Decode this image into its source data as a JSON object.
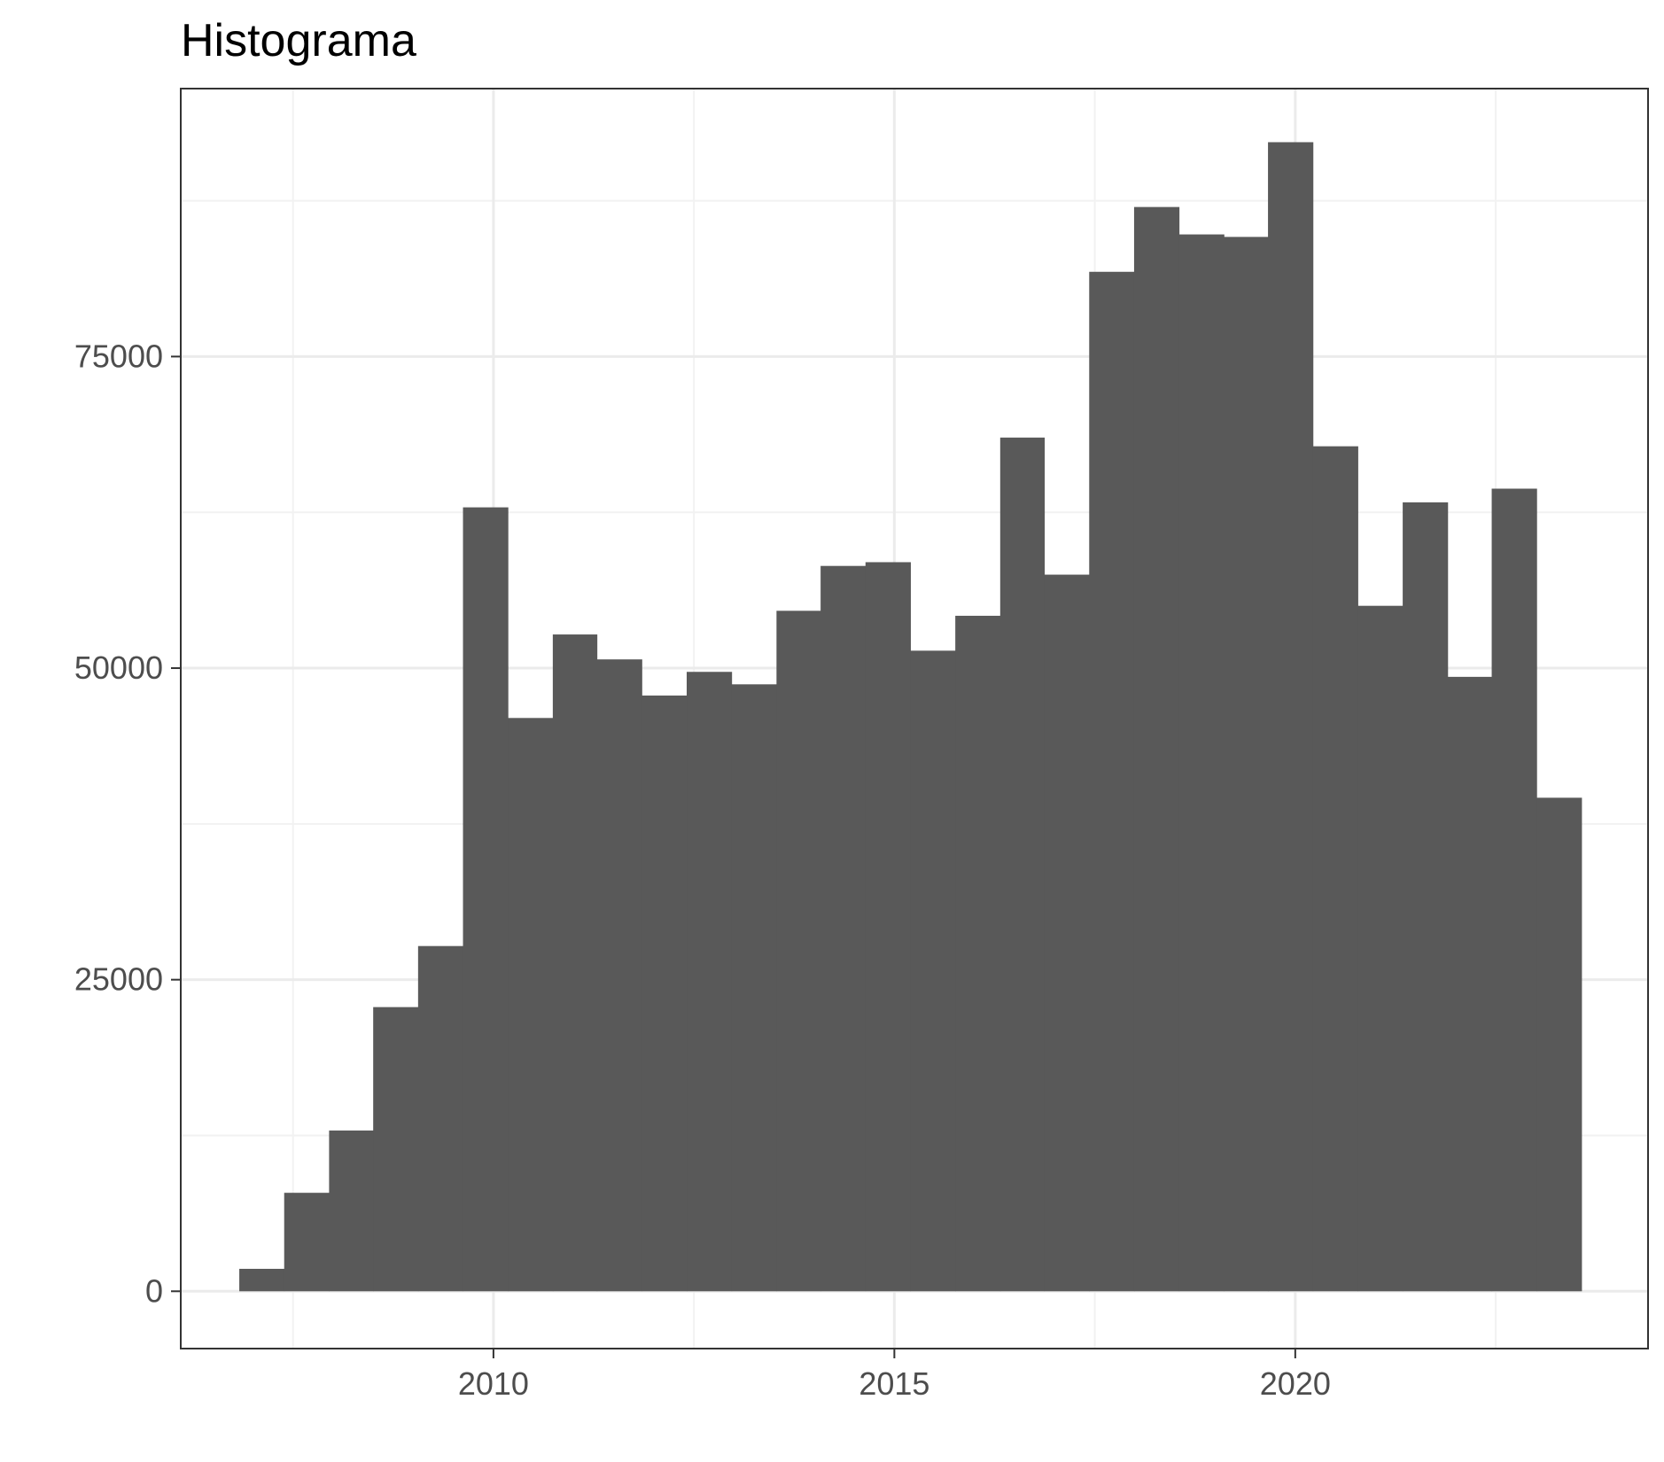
{
  "chart_data": {
    "type": "bar",
    "title": "Histograma",
    "xlabel": "",
    "ylabel": "",
    "xlim": [
      2006.1,
      2024.4
    ],
    "ylim": [
      -4600,
      96500
    ],
    "x_ticks": [
      2010,
      2015,
      2020
    ],
    "y_ticks": [
      0,
      25000,
      50000,
      75000
    ],
    "grid": true,
    "bins": [
      {
        "x0": 2006.83,
        "x1": 2007.39,
        "count": 1800
      },
      {
        "x0": 2007.39,
        "x1": 2007.95,
        "count": 7900
      },
      {
        "x0": 2007.95,
        "x1": 2008.5,
        "count": 12900
      },
      {
        "x0": 2008.5,
        "x1": 2009.06,
        "count": 22800
      },
      {
        "x0": 2009.06,
        "x1": 2009.62,
        "count": 27700
      },
      {
        "x0": 2009.62,
        "x1": 2010.18,
        "count": 62900
      },
      {
        "x0": 2010.18,
        "x1": 2010.74,
        "count": 46000
      },
      {
        "x0": 2010.74,
        "x1": 2011.29,
        "count": 52700
      },
      {
        "x0": 2011.29,
        "x1": 2011.85,
        "count": 50700
      },
      {
        "x0": 2011.85,
        "x1": 2012.41,
        "count": 47800
      },
      {
        "x0": 2012.41,
        "x1": 2012.97,
        "count": 49700
      },
      {
        "x0": 2012.97,
        "x1": 2013.53,
        "count": 48700
      },
      {
        "x0": 2013.53,
        "x1": 2014.08,
        "count": 54600
      },
      {
        "x0": 2014.08,
        "x1": 2014.64,
        "count": 58200
      },
      {
        "x0": 2014.64,
        "x1": 2015.2,
        "count": 58500
      },
      {
        "x0": 2015.2,
        "x1": 2015.76,
        "count": 51400
      },
      {
        "x0": 2015.76,
        "x1": 2016.32,
        "count": 54200
      },
      {
        "x0": 2016.32,
        "x1": 2016.87,
        "count": 68500
      },
      {
        "x0": 2016.87,
        "x1": 2017.43,
        "count": 57500
      },
      {
        "x0": 2017.43,
        "x1": 2017.99,
        "count": 81800
      },
      {
        "x0": 2017.99,
        "x1": 2018.55,
        "count": 87000
      },
      {
        "x0": 2018.55,
        "x1": 2019.11,
        "count": 84800
      },
      {
        "x0": 2019.11,
        "x1": 2019.66,
        "count": 84600
      },
      {
        "x0": 2019.66,
        "x1": 2020.22,
        "count": 92200
      },
      {
        "x0": 2020.22,
        "x1": 2020.78,
        "count": 67800
      },
      {
        "x0": 2020.78,
        "x1": 2021.34,
        "count": 55000
      },
      {
        "x0": 2021.34,
        "x1": 2021.9,
        "count": 63300
      },
      {
        "x0": 2021.9,
        "x1": 2022.45,
        "count": 49300
      },
      {
        "x0": 2022.45,
        "x1": 2023.01,
        "count": 64400
      },
      {
        "x0": 2023.01,
        "x1": 2023.57,
        "count": 39600
      }
    ],
    "colors": {
      "bar": "#595959",
      "panel_border": "#333333",
      "grid_major": "#ebebeb",
      "grid_minor": "#f2f2f2",
      "tick_text": "#4d4d4d"
    }
  }
}
